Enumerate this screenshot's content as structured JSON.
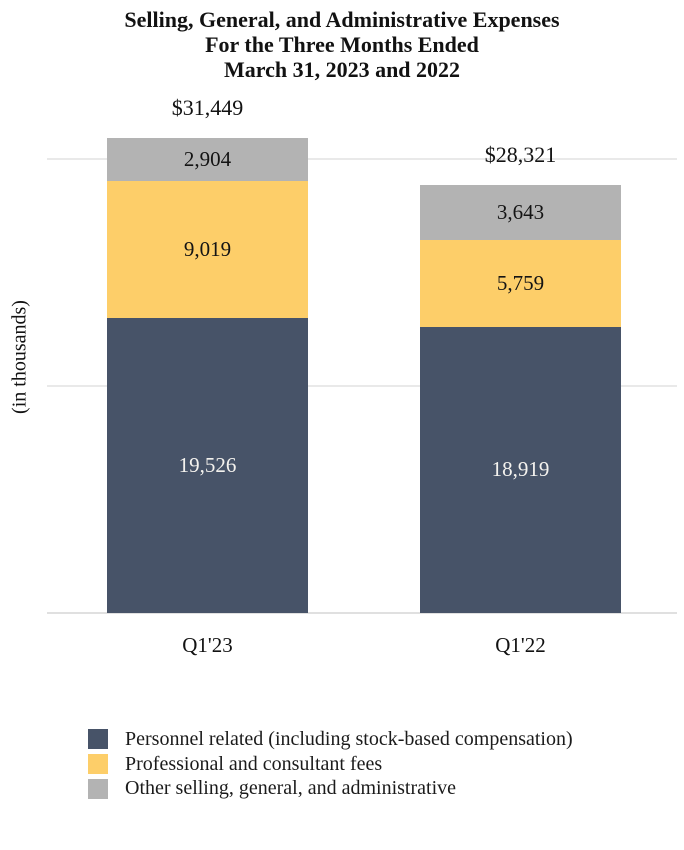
{
  "title": {
    "line1": "Selling, General, and Administrative Expenses",
    "line2": "For the Three Months Ended",
    "line3": "March 31, 2023 and 2022"
  },
  "y_axis_label": "(in thousands)",
  "chart_data": {
    "type": "bar",
    "stacked": true,
    "title": "Selling, General, and Administrative Expenses For the Three Months Ended March 31, 2023 and 2022",
    "ylabel": "(in thousands)",
    "xlabel": "",
    "categories": [
      "Q1'23",
      "Q1'22"
    ],
    "series": [
      {
        "name": "Personnel related (including stock-based compensation)",
        "values": [
          19526,
          18919
        ],
        "color": "#475368",
        "label_color": "#f4f2ee"
      },
      {
        "name": "Professional and consultant fees",
        "values": [
          9019,
          5759
        ],
        "color": "#fdce69",
        "label_color": "#141414"
      },
      {
        "name": "Other selling, general, and administrative",
        "values": [
          2904,
          3643
        ],
        "color": "#b3b3b3",
        "label_color": "#141414"
      }
    ],
    "totals": [
      31449,
      28321
    ],
    "total_labels": [
      "$31,449",
      "$28,321"
    ],
    "segment_labels": [
      [
        "19,526",
        "18,919"
      ],
      [
        "9,019",
        "5,759"
      ],
      [
        "2,904",
        "3,643"
      ]
    ],
    "gridlines": [
      0,
      15000,
      30000
    ],
    "ylim": [
      0,
      33600
    ],
    "grid": true,
    "legend_position": "bottom-left"
  },
  "colors": {
    "background": "#ffffff",
    "gridline": "#e9e9e9",
    "baseline": "#e0e0e0"
  }
}
